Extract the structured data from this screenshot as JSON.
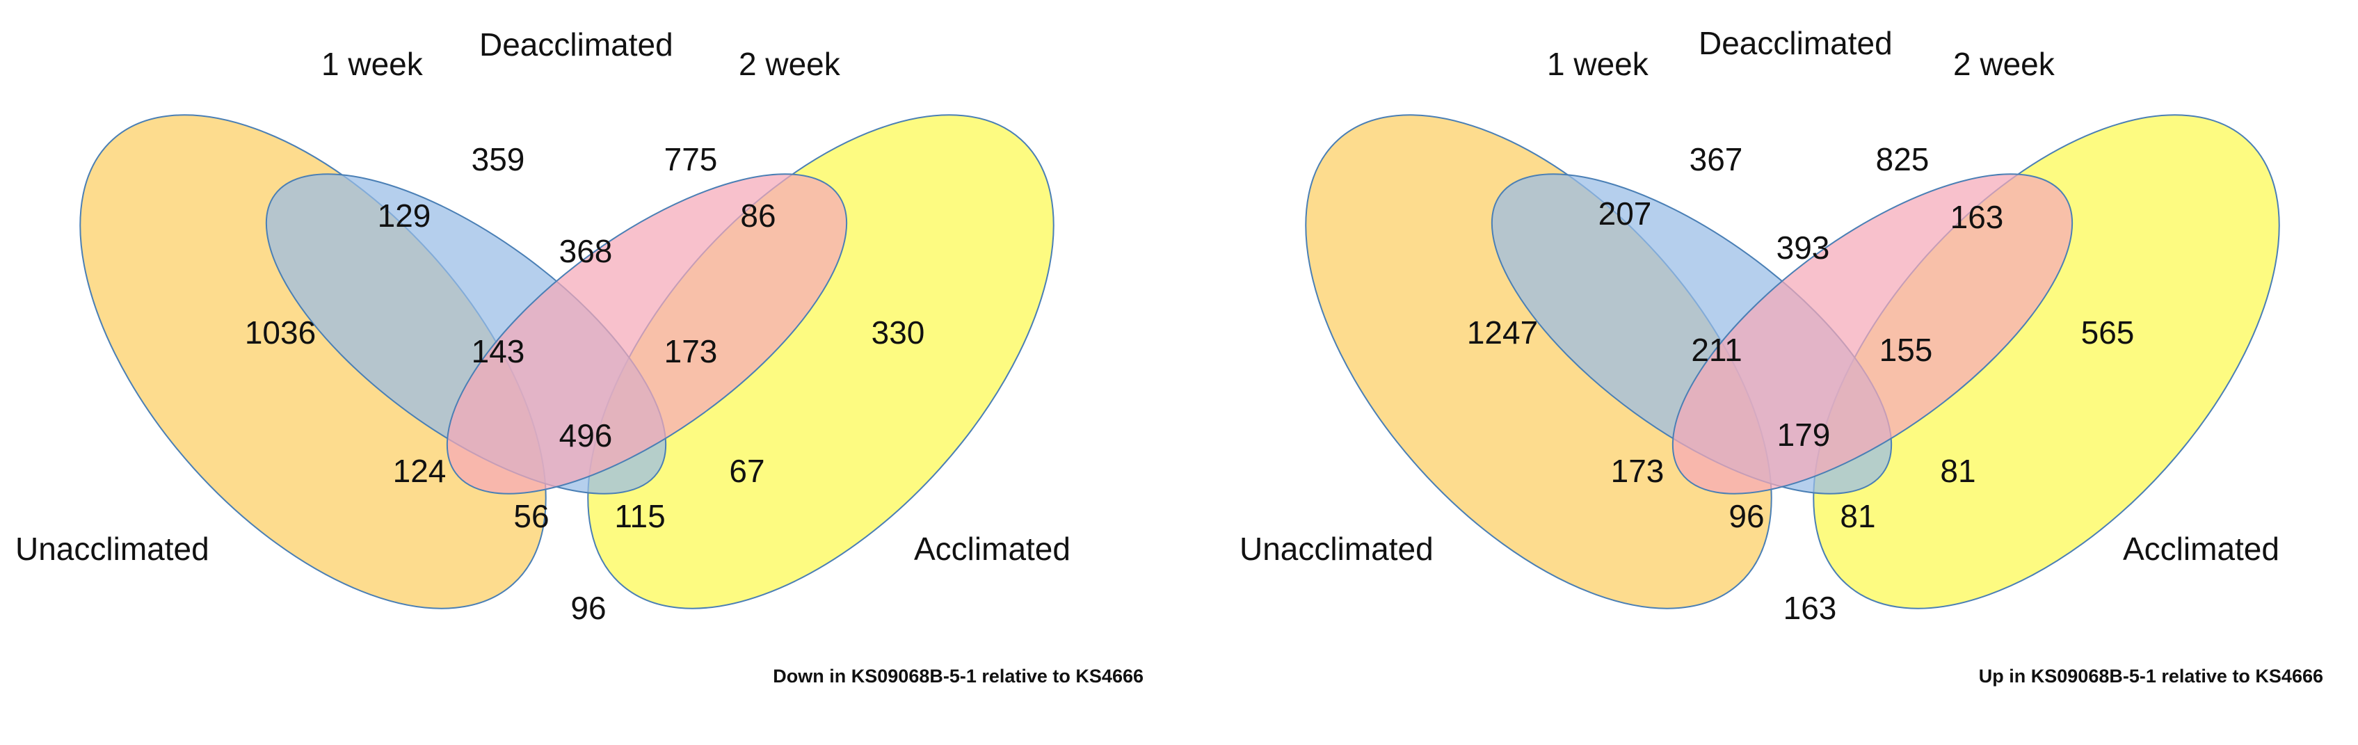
{
  "colors": {
    "unacclimated": "#fdd67a",
    "week1": "#98bde6",
    "week2": "#f5a9b8",
    "acclimated": "#fdfa6b",
    "outline": "#4a7fb5"
  },
  "diagrams": [
    {
      "labels": {
        "one_week": "1 week",
        "deacclimated": "Deacclimated",
        "two_week": "2 week",
        "unacclimated": "Unacclimated",
        "acclimated": "Acclimated"
      },
      "caption": "Down in KS09068B-5-1 relative to KS4666",
      "counts": {
        "unacclimated_only": "1036",
        "week1_only": "359",
        "week2_only": "775",
        "acclimated_only": "330",
        "unacc_week1": "129",
        "week1_week2": "368",
        "week2_acc": "86",
        "unacc_week1_week2": "143",
        "week1_week2_acc": "173",
        "all_four": "496",
        "unacc_week2": "124",
        "week1_acc": "67",
        "unacc_week2_acc": "56",
        "unacc_week1_acc": "115",
        "unacc_acc": "96"
      }
    },
    {
      "labels": {
        "one_week": "1 week",
        "deacclimated": "Deacclimated",
        "two_week": "2 week",
        "unacclimated": "Unacclimated",
        "acclimated": "Acclimated"
      },
      "caption": "Up in KS09068B-5-1 relative to KS4666",
      "counts": {
        "unacclimated_only": "1247",
        "week1_only": "367",
        "week2_only": "825",
        "acclimated_only": "565",
        "unacc_week1": "207",
        "week1_week2": "393",
        "week2_acc": "163",
        "unacc_week1_week2": "211",
        "week1_week2_acc": "155",
        "all_four": "179",
        "unacc_week2": "173",
        "week1_acc": "81",
        "unacc_week2_acc": "96",
        "unacc_week1_acc": "81",
        "unacc_acc": "163"
      }
    }
  ]
}
